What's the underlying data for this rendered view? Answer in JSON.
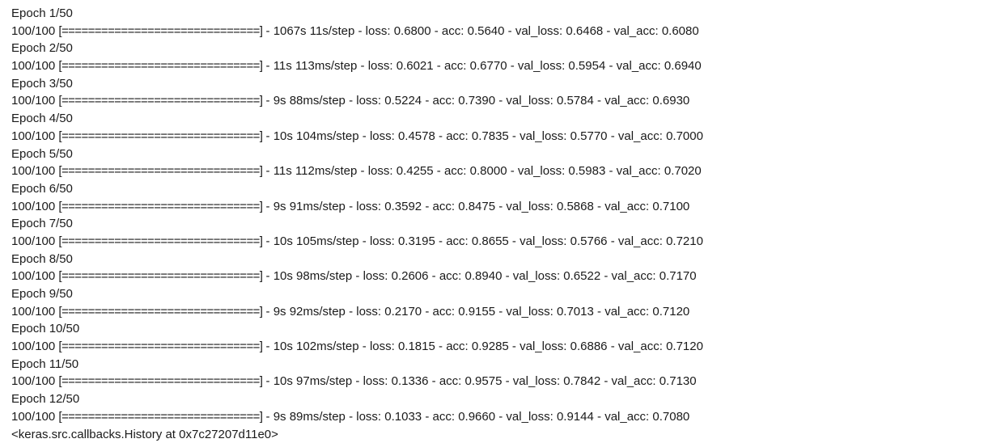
{
  "labels": {
    "sep": " - ",
    "loss": "loss: ",
    "acc": "acc: ",
    "val_loss": "val_loss: ",
    "val_acc": "val_acc: "
  },
  "epochs": [
    {
      "epoch": "Epoch 1/50",
      "progress": "100/100",
      "bar": "[==============================]",
      "time": "1067s",
      "step": "11s/step",
      "loss": "0.6800",
      "acc": "0.5640",
      "val_loss": "0.6468",
      "val_acc": "0.6080"
    },
    {
      "epoch": "Epoch 2/50",
      "progress": "100/100",
      "bar": "[==============================]",
      "time": "11s",
      "step": "113ms/step",
      "loss": "0.6021",
      "acc": "0.6770",
      "val_loss": "0.5954",
      "val_acc": "0.6940"
    },
    {
      "epoch": "Epoch 3/50",
      "progress": "100/100",
      "bar": "[==============================]",
      "time": "9s",
      "step": "88ms/step",
      "loss": "0.5224",
      "acc": "0.7390",
      "val_loss": "0.5784",
      "val_acc": "0.6930"
    },
    {
      "epoch": "Epoch 4/50",
      "progress": "100/100",
      "bar": "[==============================]",
      "time": "10s",
      "step": "104ms/step",
      "loss": "0.4578",
      "acc": "0.7835",
      "val_loss": "0.5770",
      "val_acc": "0.7000"
    },
    {
      "epoch": "Epoch 5/50",
      "progress": "100/100",
      "bar": "[==============================]",
      "time": "11s",
      "step": "112ms/step",
      "loss": "0.4255",
      "acc": "0.8000",
      "val_loss": "0.5983",
      "val_acc": "0.7020"
    },
    {
      "epoch": "Epoch 6/50",
      "progress": "100/100",
      "bar": "[==============================]",
      "time": "9s",
      "step": "91ms/step",
      "loss": "0.3592",
      "acc": "0.8475",
      "val_loss": "0.5868",
      "val_acc": "0.7100"
    },
    {
      "epoch": "Epoch 7/50",
      "progress": "100/100",
      "bar": "[==============================]",
      "time": "10s",
      "step": "105ms/step",
      "loss": "0.3195",
      "acc": "0.8655",
      "val_loss": "0.5766",
      "val_acc": "0.7210"
    },
    {
      "epoch": "Epoch 8/50",
      "progress": "100/100",
      "bar": "[==============================]",
      "time": "10s",
      "step": "98ms/step",
      "loss": "0.2606",
      "acc": "0.8940",
      "val_loss": "0.6522",
      "val_acc": "0.7170"
    },
    {
      "epoch": "Epoch 9/50",
      "progress": "100/100",
      "bar": "[==============================]",
      "time": "9s",
      "step": "92ms/step",
      "loss": "0.2170",
      "acc": "0.9155",
      "val_loss": "0.7013",
      "val_acc": "0.7120"
    },
    {
      "epoch": "Epoch 10/50",
      "progress": "100/100",
      "bar": "[==============================]",
      "time": "10s",
      "step": "102ms/step",
      "loss": "0.1815",
      "acc": "0.9285",
      "val_loss": "0.6886",
      "val_acc": "0.7120"
    },
    {
      "epoch": "Epoch 11/50",
      "progress": "100/100",
      "bar": "[==============================]",
      "time": "10s",
      "step": "97ms/step",
      "loss": "0.1336",
      "acc": "0.9575",
      "val_loss": "0.7842",
      "val_acc": "0.7130"
    },
    {
      "epoch": "Epoch 12/50",
      "progress": "100/100",
      "bar": "[==============================]",
      "time": "9s",
      "step": "89ms/step",
      "loss": "0.1033",
      "acc": "0.9660",
      "val_loss": "0.9144",
      "val_acc": "0.7080"
    }
  ],
  "result": "<keras.src.callbacks.History at 0x7c27207d11e0>"
}
